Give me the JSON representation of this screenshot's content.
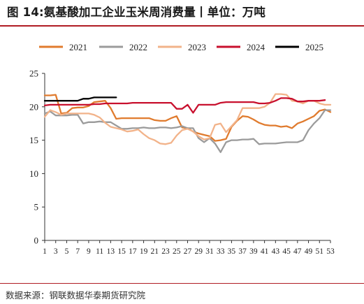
{
  "title": "图 14:氨基酸加工企业玉米周消费量丨单位：万吨",
  "source": "数据来源：钢联数据华泰期货研究院",
  "chart_data": {
    "type": "line",
    "title": "氨基酸加工企业玉米周消费量",
    "unit": "万吨",
    "xlabel": "",
    "ylabel": "",
    "ylim": [
      0,
      25
    ],
    "yticks": [
      0,
      5,
      10,
      15,
      20,
      25
    ],
    "xlim": [
      1,
      53
    ],
    "xticks": [
      1,
      3,
      5,
      7,
      9,
      11,
      13,
      15,
      17,
      19,
      21,
      23,
      25,
      27,
      29,
      31,
      33,
      35,
      37,
      39,
      41,
      43,
      45,
      47,
      49,
      51,
      53
    ],
    "grid": false,
    "legend": "top",
    "series": [
      {
        "name": "2021",
        "color": "#e07b2e",
        "x": [
          1,
          2,
          3,
          4,
          5,
          6,
          7,
          8,
          9,
          10,
          11,
          12,
          13,
          14,
          15,
          16,
          17,
          18,
          19,
          20,
          21,
          22,
          23,
          24,
          25,
          26,
          27,
          28,
          29,
          30,
          31,
          32,
          33,
          34,
          35,
          36,
          37,
          38,
          39,
          40,
          41,
          42,
          43,
          44,
          45,
          46,
          47,
          48,
          49,
          50,
          51,
          52,
          53
        ],
        "values": [
          21.7,
          21.7,
          21.8,
          19.0,
          19.1,
          19.8,
          19.9,
          19.9,
          20.1,
          20.7,
          20.8,
          20.9,
          19.8,
          18.2,
          18.3,
          18.3,
          18.3,
          18.3,
          18.3,
          18.3,
          18.0,
          17.9,
          17.9,
          18.3,
          18.6,
          16.9,
          16.8,
          16.3,
          16.0,
          15.8,
          15.6,
          14.9,
          15.0,
          15.2,
          17.0,
          17.9,
          18.6,
          18.5,
          18.1,
          17.6,
          17.3,
          17.2,
          17.2,
          17.0,
          17.1,
          16.8,
          17.5,
          17.8,
          18.2,
          18.6,
          19.4,
          19.6,
          19.2
        ]
      },
      {
        "name": "2022",
        "color": "#9b9b9b",
        "x": [
          1,
          2,
          3,
          4,
          5,
          6,
          7,
          8,
          9,
          10,
          11,
          12,
          13,
          14,
          15,
          16,
          17,
          18,
          19,
          20,
          21,
          22,
          23,
          24,
          25,
          26,
          27,
          28,
          29,
          30,
          31,
          32,
          33,
          34,
          35,
          36,
          37,
          38,
          39,
          40,
          41,
          42,
          43,
          44,
          45,
          46,
          47,
          48,
          49,
          50,
          51,
          52,
          53
        ],
        "values": [
          19.0,
          19.3,
          18.7,
          18.7,
          18.7,
          18.8,
          18.8,
          17.5,
          17.7,
          17.7,
          17.8,
          17.7,
          17.7,
          17.2,
          16.7,
          16.7,
          16.8,
          16.8,
          16.9,
          16.8,
          16.8,
          16.9,
          16.9,
          16.8,
          16.9,
          17.1,
          16.8,
          16.8,
          15.3,
          14.7,
          15.3,
          14.5,
          13.2,
          14.7,
          15.0,
          15.0,
          15.1,
          15.1,
          15.2,
          14.4,
          14.5,
          14.5,
          14.5,
          14.6,
          14.7,
          14.7,
          14.7,
          15.0,
          16.5,
          17.5,
          18.3,
          19.5,
          19.5
        ]
      },
      {
        "name": "2023",
        "color": "#f2b38a",
        "x": [
          1,
          2,
          3,
          4,
          5,
          6,
          7,
          8,
          9,
          10,
          11,
          12,
          13,
          14,
          15,
          16,
          17,
          18,
          19,
          20,
          21,
          22,
          23,
          24,
          25,
          26,
          27,
          28,
          29,
          30,
          31,
          32,
          33,
          34,
          35,
          36,
          37,
          38,
          39,
          40,
          41,
          42,
          43,
          44,
          45,
          46,
          47,
          48,
          49,
          50,
          51,
          52,
          53
        ],
        "values": [
          18.5,
          19.5,
          19.2,
          18.8,
          19.0,
          19.0,
          19.0,
          19.0,
          19.0,
          18.8,
          18.4,
          17.6,
          17.0,
          16.8,
          16.6,
          16.3,
          16.4,
          16.6,
          15.9,
          15.3,
          15.0,
          14.5,
          14.4,
          14.6,
          15.7,
          16.5,
          16.7,
          16.3,
          15.6,
          15.1,
          15.3,
          17.3,
          17.5,
          16.2,
          17.1,
          18.0,
          19.8,
          19.8,
          19.8,
          19.8,
          20.0,
          20.6,
          21.9,
          21.9,
          21.8,
          20.9,
          20.8,
          20.5,
          20.9,
          20.9,
          20.5,
          20.3,
          20.3
        ]
      },
      {
        "name": "2024",
        "color": "#c8102e",
        "x": [
          1,
          2,
          3,
          4,
          5,
          6,
          7,
          8,
          9,
          10,
          11,
          12,
          13,
          14,
          15,
          16,
          17,
          18,
          19,
          20,
          21,
          22,
          23,
          24,
          25,
          26,
          27,
          28,
          29,
          30,
          31,
          32,
          33,
          34,
          35,
          36,
          37,
          38,
          39,
          40,
          41,
          42,
          43,
          44,
          45,
          46,
          47,
          48,
          49,
          50,
          51,
          52
        ],
        "values": [
          20.2,
          20.3,
          20.3,
          20.3,
          20.3,
          20.3,
          20.3,
          20.3,
          20.3,
          20.4,
          20.4,
          20.5,
          20.5,
          20.5,
          20.5,
          20.5,
          20.6,
          20.6,
          20.6,
          20.6,
          20.6,
          20.6,
          20.6,
          20.6,
          19.7,
          19.7,
          20.3,
          19.1,
          20.3,
          20.3,
          20.3,
          20.3,
          20.6,
          20.7,
          20.7,
          20.7,
          20.7,
          20.7,
          20.7,
          20.5,
          20.5,
          20.6,
          20.9,
          21.3,
          21.3,
          21.2,
          20.8,
          20.8,
          20.9,
          20.9,
          20.9,
          21.0
        ]
      },
      {
        "name": "2025",
        "color": "#000000",
        "x": [
          1,
          2,
          3,
          4,
          5,
          6,
          7,
          8,
          9,
          10,
          11,
          12,
          13,
          14
        ],
        "values": [
          20.9,
          20.9,
          20.9,
          20.9,
          20.9,
          20.9,
          20.9,
          21.2,
          21.2,
          21.4,
          21.4,
          21.4,
          21.4,
          21.4
        ]
      }
    ]
  }
}
